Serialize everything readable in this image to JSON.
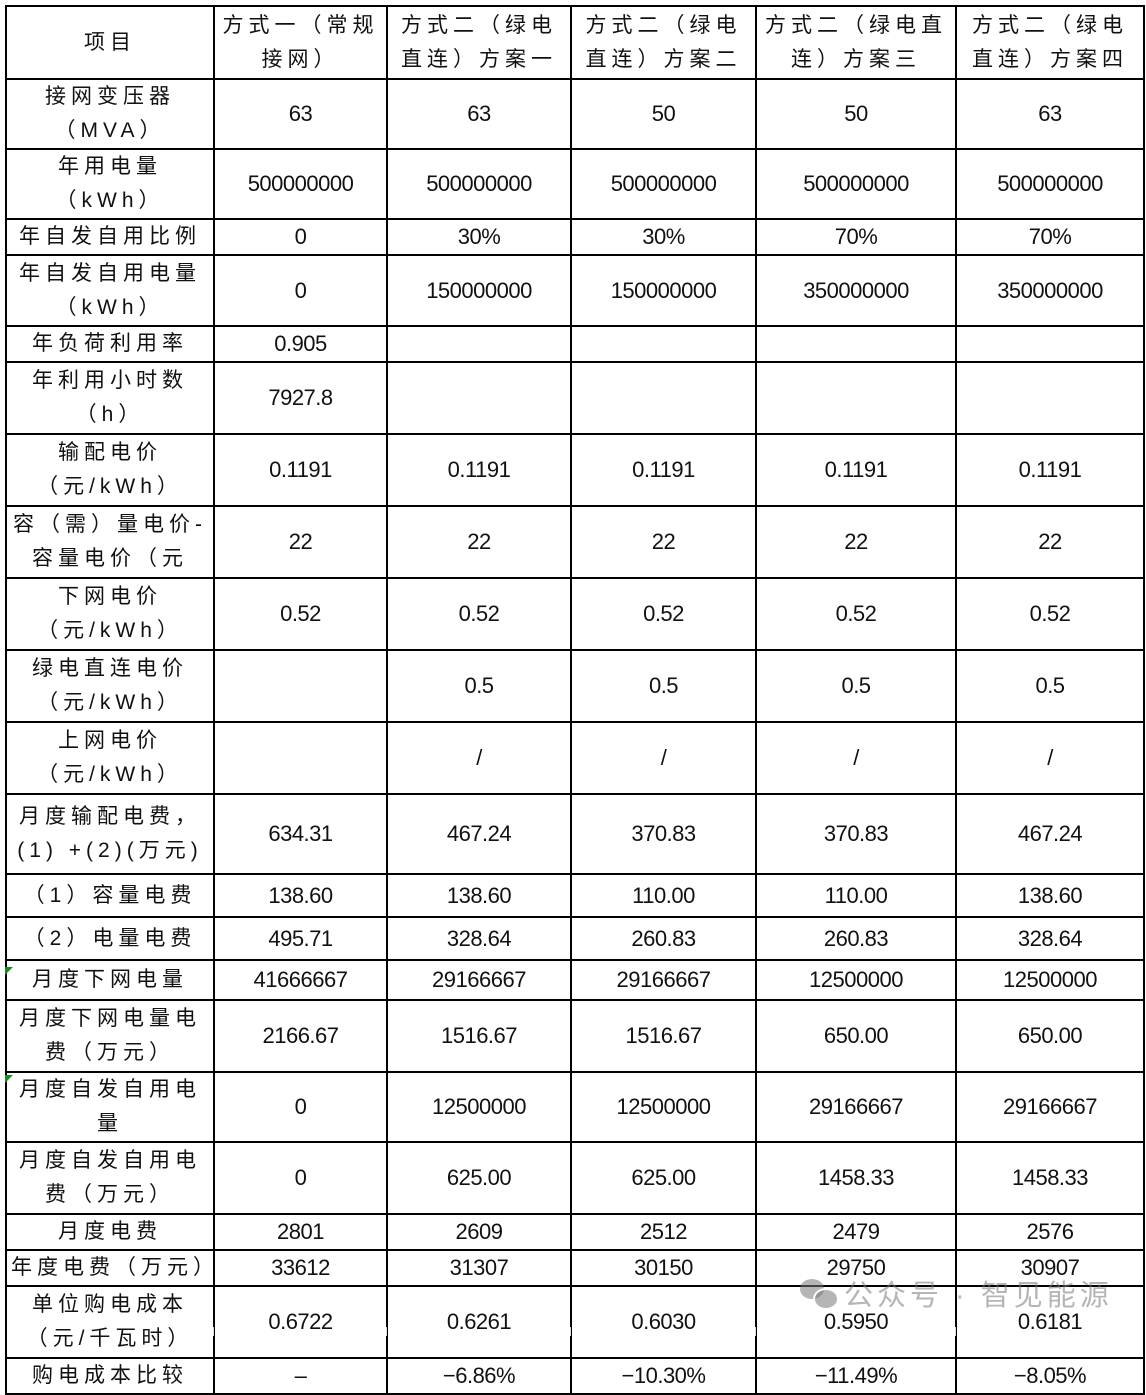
{
  "headers": [
    "项目",
    "方式一（常规接网）",
    "方式二（绿电直连）方案一",
    "方式二（绿电直连）方案二",
    "方式二（绿电直连）方案三",
    "方式二（绿电直连）方案四"
  ],
  "rows": [
    {
      "label": "接网变压器（MVA）",
      "values": [
        "63",
        "63",
        "50",
        "50",
        "63"
      ]
    },
    {
      "label": "年用电量（kWh）",
      "values": [
        "500000000",
        "500000000",
        "500000000",
        "500000000",
        "500000000"
      ]
    },
    {
      "label": "年自发自用比例",
      "values": [
        "0",
        "30%",
        "30%",
        "70%",
        "70%"
      ]
    },
    {
      "label": "年自发自用电量（kWh）",
      "values": [
        "0",
        "150000000",
        "150000000",
        "350000000",
        "350000000"
      ]
    },
    {
      "label": "年负荷利用率",
      "values": [
        "0.905",
        "",
        "",
        "",
        ""
      ]
    },
    {
      "label": "年利用小时数（h）",
      "values": [
        "7927.8",
        "",
        "",
        "",
        ""
      ]
    },
    {
      "label": "输配电价（元/kWh）",
      "values": [
        "0.1191",
        "0.1191",
        "0.1191",
        "0.1191",
        "0.1191"
      ]
    },
    {
      "label": "容（需）量电价-容量电价（元",
      "values": [
        "22",
        "22",
        "22",
        "22",
        "22"
      ]
    },
    {
      "label": "下网电价（元/kWh）",
      "values": [
        "0.52",
        "0.52",
        "0.52",
        "0.52",
        "0.52"
      ]
    },
    {
      "label": "绿电直连电价（元/kWh）",
      "values": [
        "",
        "0.5",
        "0.5",
        "0.5",
        "0.5"
      ]
    },
    {
      "label": "上网电价（元/kWh）",
      "values": [
        "",
        "/",
        "/",
        "/",
        "/"
      ]
    },
    {
      "label": "月度输配电费，(1) +(2)(万元)",
      "values": [
        "634.31",
        "467.24",
        "370.83",
        "370.83",
        "467.24"
      ]
    },
    {
      "label": "（1）容量电费",
      "values": [
        "138.60",
        "138.60",
        "110.00",
        "110.00",
        "138.60"
      ]
    },
    {
      "label": "（2）电量电费",
      "values": [
        "495.71",
        "328.64",
        "260.83",
        "260.83",
        "328.64"
      ]
    },
    {
      "label": "月度下网电量",
      "values": [
        "41666667",
        "29166667",
        "29166667",
        "12500000",
        "12500000"
      ]
    },
    {
      "label": "月度下网电量电费（万元）",
      "values": [
        "2166.67",
        "1516.67",
        "1516.67",
        "650.00",
        "650.00"
      ]
    },
    {
      "label": "月度自发自用电量",
      "values": [
        "0",
        "12500000",
        "12500000",
        "29166667",
        "29166667"
      ]
    },
    {
      "label": "月度自发自用电费（万元）",
      "values": [
        "0",
        "625.00",
        "625.00",
        "1458.33",
        "1458.33"
      ]
    },
    {
      "label": "月度电费",
      "values": [
        "2801",
        "2609",
        "2512",
        "2479",
        "2576"
      ]
    },
    {
      "label": "年度电费（万元）",
      "values": [
        "33612",
        "31307",
        "30150",
        "29750",
        "30907"
      ]
    },
    {
      "label": "单位购电成本（元/千瓦时）",
      "values": [
        "0.6722",
        "0.6261",
        "0.6030",
        "0.5950",
        "0.6181"
      ]
    },
    {
      "label": "购电成本比较",
      "values": [
        "–",
        "−6.86%",
        "−10.30%",
        "−11.49%",
        "−8.05%"
      ]
    }
  ],
  "watermark": {
    "text": "公众号 · 智见能源",
    "icon": "wechat-icon"
  },
  "colors": {
    "comment_marker": "#1a8a1a",
    "border": "#000000"
  }
}
